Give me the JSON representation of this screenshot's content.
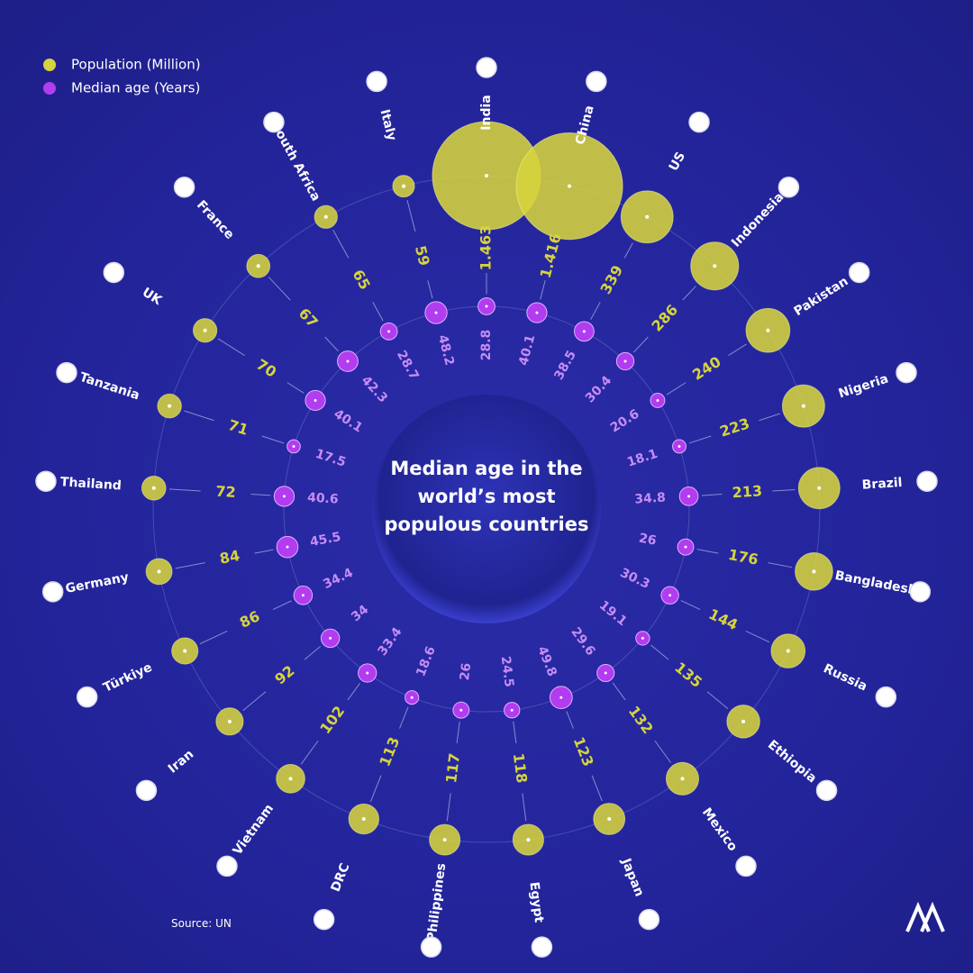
{
  "chart_data": {
    "type": "radial",
    "title": "Median age in the world’s most populous countries",
    "source": "Source: UN",
    "categories": [
      "India",
      "China",
      "US",
      "Indonesia",
      "Pakistan",
      "Nigeria",
      "Brazil",
      "Bangladesh",
      "Russia",
      "Ethiopia",
      "Mexico",
      "Japan",
      "Egypt",
      "Philippines",
      "DRC",
      "Vietnam",
      "Iran",
      "Türkiye",
      "Germany",
      "Thailand",
      "Tanzania",
      "UK",
      "France",
      "South Africa",
      "Italy"
    ],
    "series": [
      {
        "name": "Population (Million)",
        "color": "#d6d43c",
        "values": [
          1463,
          1416,
          339,
          286,
          240,
          223,
          213,
          176,
          144,
          135,
          132,
          123,
          118,
          117,
          113,
          102,
          92,
          86,
          84,
          72,
          71,
          70,
          67,
          65,
          59
        ],
        "value_labels": [
          "1.463",
          "1.416",
          "339",
          "286",
          "240",
          "223",
          "213",
          "176",
          "144",
          "135",
          "132",
          "123",
          "118",
          "117",
          "113",
          "102",
          "92",
          "86",
          "84",
          "72",
          "71",
          "70",
          "67",
          "65",
          "59"
        ]
      },
      {
        "name": "Median age (Years)",
        "color": "#b23cf0",
        "values": [
          28.8,
          40.1,
          38.5,
          30.4,
          20.6,
          18.1,
          34.8,
          26,
          30.3,
          19.1,
          29.6,
          49.8,
          24.5,
          26,
          18.6,
          33.4,
          34,
          34.4,
          45.5,
          40.6,
          17.5,
          40.1,
          42.3,
          28.7,
          48.2
        ]
      }
    ]
  }
}
